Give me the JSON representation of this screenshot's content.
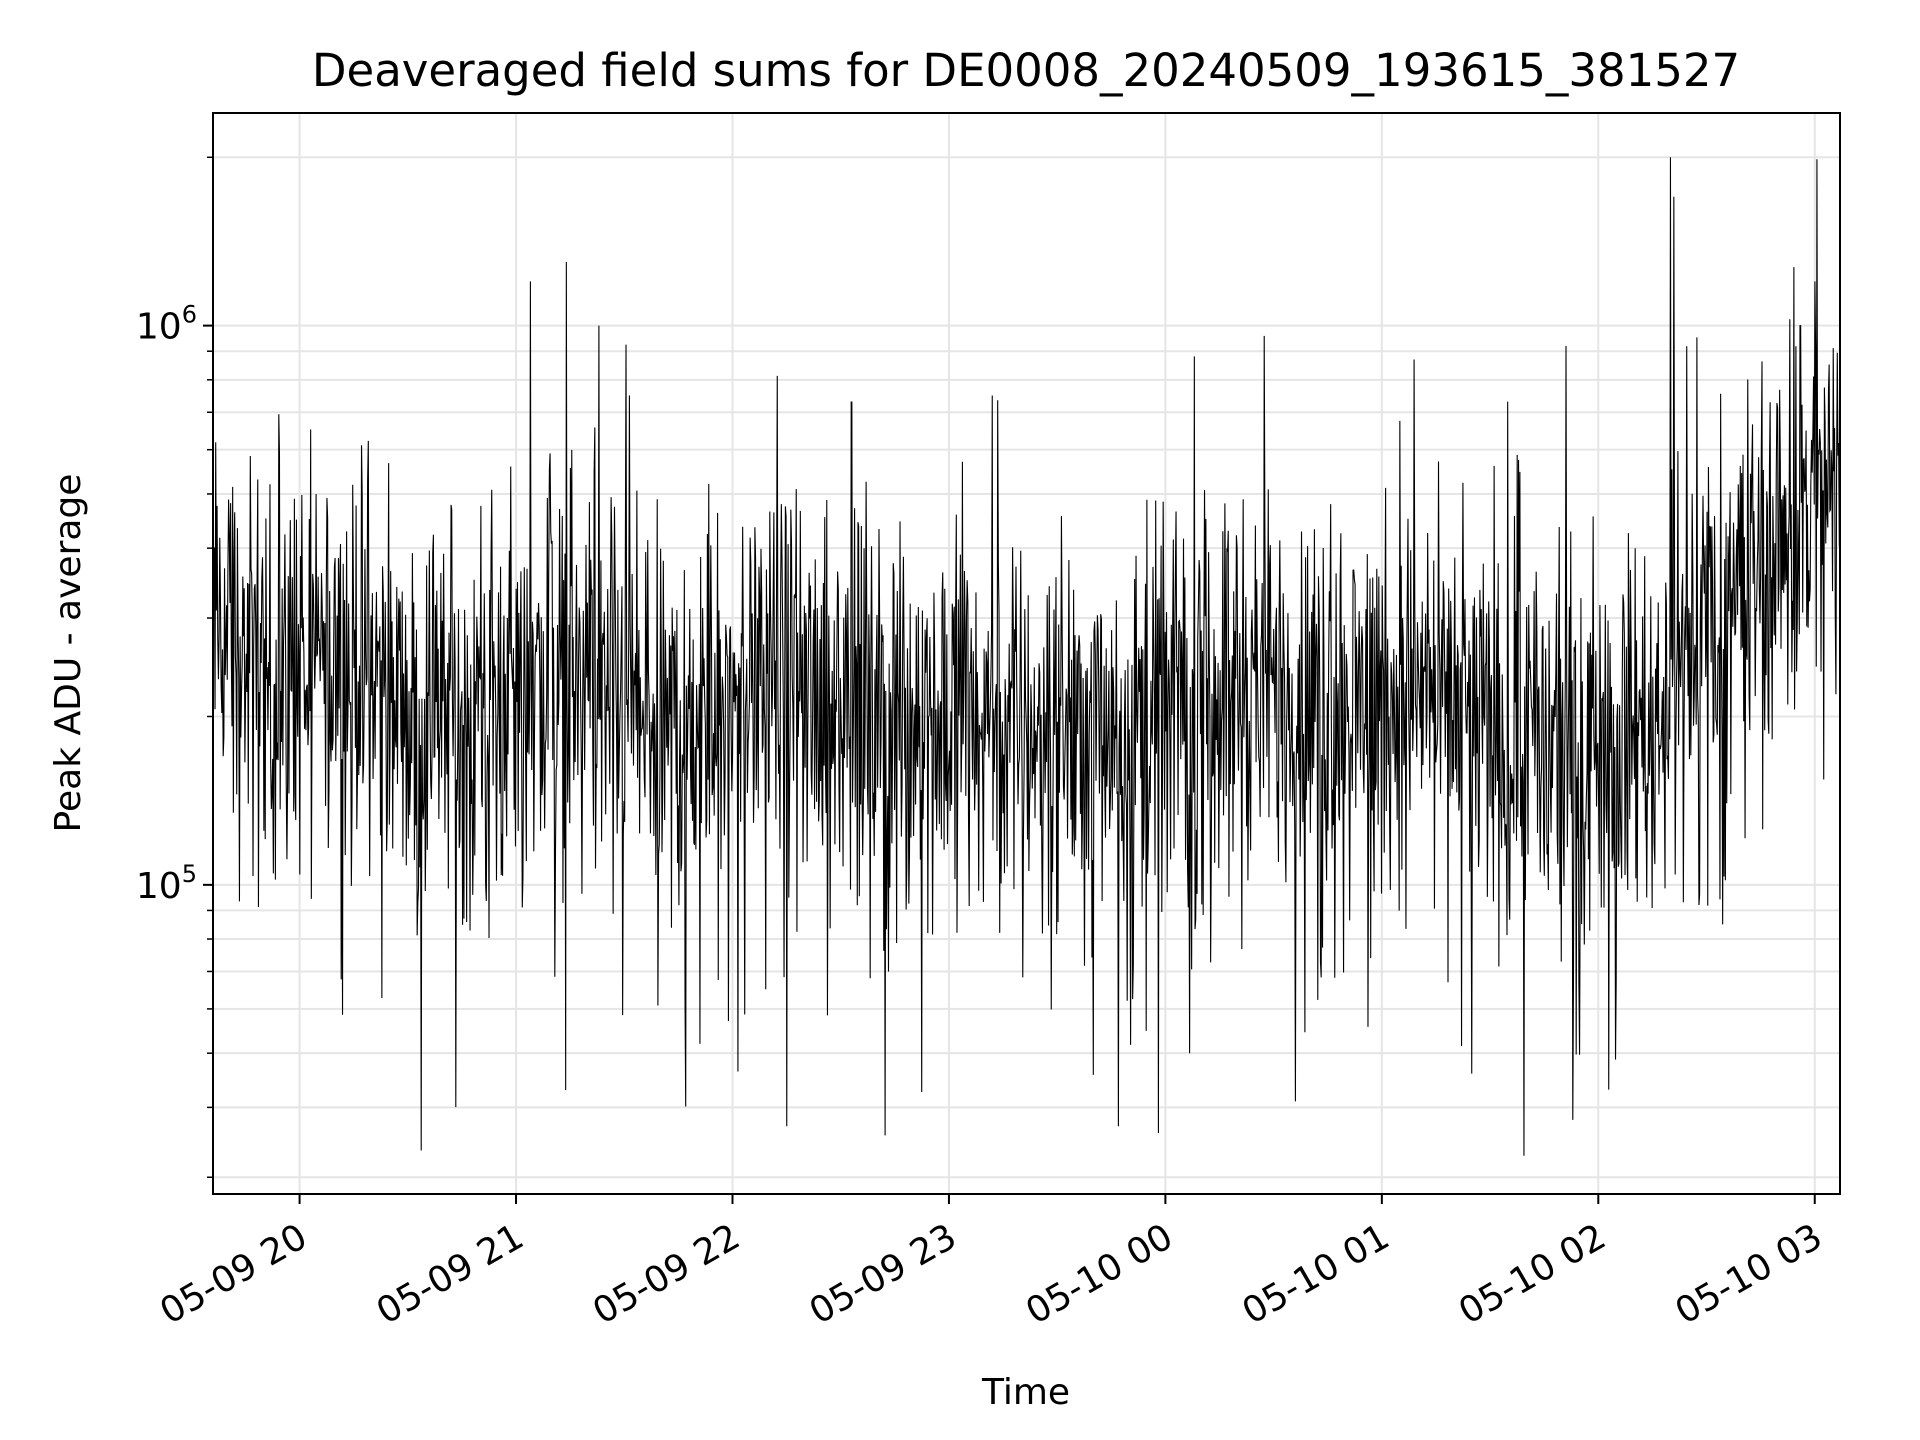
{
  "chart_data": {
    "type": "line",
    "title": "Deaveraged field sums for DE0008_20240509_193615_381527",
    "xlabel": "Time",
    "ylabel": "Peak ADU - average",
    "yscale": "log",
    "xlim": [
      "2024-05-09T19:36",
      "2024-05-10T03:07"
    ],
    "ylim": [
      28000,
      2400000
    ],
    "grid": true,
    "line_color": "#000000",
    "grid_color": "#e5e5e5",
    "x_ticks": [
      {
        "value": "2024-05-09T20:00",
        "label": "05-09 20"
      },
      {
        "value": "2024-05-09T21:00",
        "label": "05-09 21"
      },
      {
        "value": "2024-05-09T22:00",
        "label": "05-09 22"
      },
      {
        "value": "2024-05-09T23:00",
        "label": "05-09 23"
      },
      {
        "value": "2024-05-10T00:00",
        "label": "05-10 00"
      },
      {
        "value": "2024-05-10T01:00",
        "label": "05-10 01"
      },
      {
        "value": "2024-05-10T02:00",
        "label": "05-10 02"
      },
      {
        "value": "2024-05-10T03:00",
        "label": "05-10 03"
      }
    ],
    "y_ticks": [
      {
        "value": 100000,
        "base": "10",
        "exp": "5"
      },
      {
        "value": 1000000,
        "base": "10",
        "exp": "6"
      }
    ],
    "series": [
      {
        "x": [
          "2024-05-09T19:36",
          "2024-05-09T19:45",
          "2024-05-09T20:00",
          "2024-05-09T20:15",
          "2024-05-09T20:30",
          "2024-05-09T20:45",
          "2024-05-09T21:00",
          "2024-05-09T21:15",
          "2024-05-09T21:30",
          "2024-05-09T21:45",
          "2024-05-09T22:00",
          "2024-05-09T22:15",
          "2024-05-09T22:30",
          "2024-05-09T22:45",
          "2024-05-09T23:00",
          "2024-05-09T23:15",
          "2024-05-09T23:30",
          "2024-05-09T23:45",
          "2024-05-10T00:00",
          "2024-05-10T00:15",
          "2024-05-10T00:30",
          "2024-05-10T00:45",
          "2024-05-10T01:00",
          "2024-05-10T01:15",
          "2024-05-10T01:30",
          "2024-05-10T01:45",
          "2024-05-10T02:00",
          "2024-05-10T02:15",
          "2024-05-10T02:30",
          "2024-05-10T02:45",
          "2024-05-10T03:00",
          "2024-05-10T03:07"
        ],
        "y": [
          300000,
          250000,
          230000,
          260000,
          200000,
          190000,
          210000,
          230000,
          200000,
          190000,
          210000,
          230000,
          190000,
          200000,
          210000,
          200000,
          190000,
          195000,
          200000,
          230000,
          220000,
          210000,
          225000,
          215000,
          190000,
          175000,
          185000,
          200000,
          310000,
          380000,
          470000,
          520000
        ],
        "spikes": [
          {
            "x": "2024-05-09T21:04",
            "y": 1200000
          },
          {
            "x": "2024-05-09T21:14",
            "y": 1300000
          },
          {
            "x": "2024-05-09T21:23",
            "y": 1000000
          },
          {
            "x": "2024-05-09T22:33",
            "y": 730000
          },
          {
            "x": "2024-05-09T23:12",
            "y": 750000
          },
          {
            "x": "2024-05-10T01:09",
            "y": 870000
          },
          {
            "x": "2024-05-10T01:51",
            "y": 920000
          },
          {
            "x": "2024-05-10T02:20",
            "y": 2000000
          },
          {
            "x": "2024-05-10T02:21",
            "y": 1700000
          },
          {
            "x": "2024-05-10T02:56",
            "y": 1000000
          },
          {
            "x": "2024-05-10T03:00",
            "y": 1200000
          },
          {
            "x": "2024-05-09T22:15",
            "y": 37000
          },
          {
            "x": "2024-05-09T23:47",
            "y": 37000
          },
          {
            "x": "2024-05-09T23:58",
            "y": 36000
          },
          {
            "x": "2024-05-10T01:53",
            "y": 38000
          },
          {
            "x": "2024-05-10T00:36",
            "y": 41000
          }
        ]
      }
    ]
  }
}
